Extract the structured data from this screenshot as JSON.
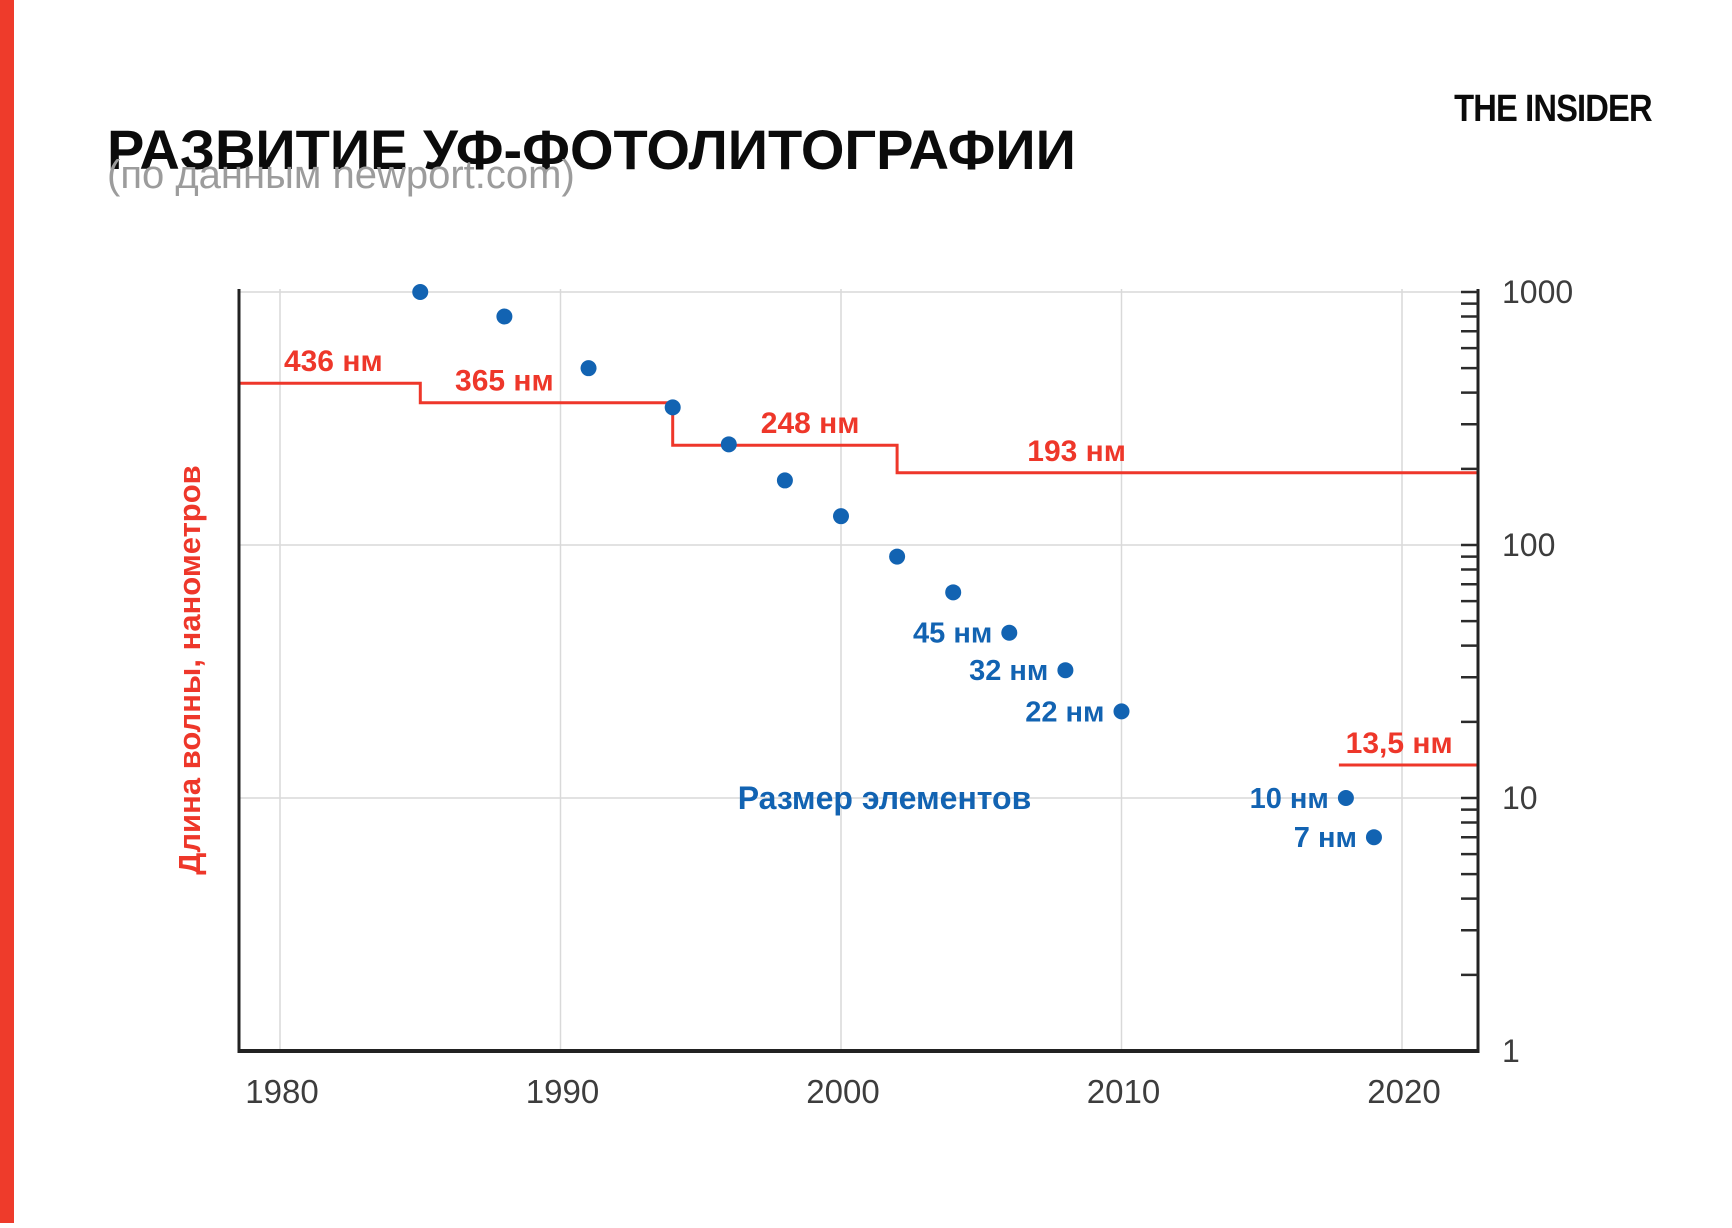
{
  "header": {
    "title": "РАЗВИТИЕ УФ-ФОТОЛИТОГРАФИИ",
    "subtitle": "(по данным newport.com)",
    "brand": "THE INSIDER"
  },
  "colors": {
    "accent_red": "#ee3b2b",
    "line_red": "#ee372a",
    "point_blue": "#1263b2",
    "grid": "#d9d9d9",
    "axis": "#222222",
    "tick_text": "#3d3d3d"
  },
  "chart_data": {
    "type": "scatter",
    "title": "РАЗВИТИЕ УФ-ФОТОЛИТОГРАФИИ",
    "subtitle": "(по данным newport.com)",
    "x_axis": {
      "ticks": [
        1980,
        1990,
        2000,
        2010,
        2020
      ],
      "range": [
        1978.5,
        2022.7
      ],
      "grid": true
    },
    "y_axis": {
      "scale": "log",
      "side": "right",
      "ticks": [
        1000,
        100,
        10,
        1
      ],
      "range": [
        1,
        1000
      ],
      "label": "Длина волны, нанометров",
      "grid": true
    },
    "series": [
      {
        "name": "Размер элементов",
        "type": "points",
        "unit": "нм",
        "points": [
          {
            "year": 1985,
            "nm": 1000
          },
          {
            "year": 1988,
            "nm": 800
          },
          {
            "year": 1991,
            "nm": 500
          },
          {
            "year": 1994,
            "nm": 350
          },
          {
            "year": 1996,
            "nm": 250
          },
          {
            "year": 1998,
            "nm": 180
          },
          {
            "year": 2000,
            "nm": 130
          },
          {
            "year": 2002,
            "nm": 90
          },
          {
            "year": 2004,
            "nm": 65
          },
          {
            "year": 2006,
            "nm": 45,
            "label": "45 нм"
          },
          {
            "year": 2008,
            "nm": 32,
            "label": "32 нм"
          },
          {
            "year": 2010,
            "nm": 22,
            "label": "22 нм"
          },
          {
            "year": 2018,
            "nm": 10,
            "label": "10 нм"
          },
          {
            "year": 2019,
            "nm": 7,
            "label": "7 нм"
          }
        ],
        "series_label": {
          "text": "Размер элементов",
          "year": 2001.55,
          "nm": 10
        }
      },
      {
        "name": "Длина волны, нанометров",
        "type": "step-line",
        "unit": "нм",
        "segments": [
          {
            "nm": 436,
            "from": 1978.5,
            "to": 1985,
            "label": "436 нм",
            "label_year": 1981.9,
            "connected": false
          },
          {
            "nm": 365,
            "from": 1985,
            "to": 1994,
            "label": "365 нм",
            "label_year": 1988.0,
            "connected": true
          },
          {
            "nm": 248,
            "from": 1994,
            "to": 2002,
            "label": "248 нм",
            "label_year": 1998.9,
            "connected": true
          },
          {
            "nm": 193,
            "from": 2002,
            "to": 2022.7,
            "label": "193 нм",
            "label_year": 2008.4,
            "connected": true
          },
          {
            "nm": 13.5,
            "from": 2017.75,
            "to": 2022.7,
            "label": "13,5 нм",
            "label_year": 2019.9,
            "connected": false
          }
        ]
      }
    ]
  }
}
